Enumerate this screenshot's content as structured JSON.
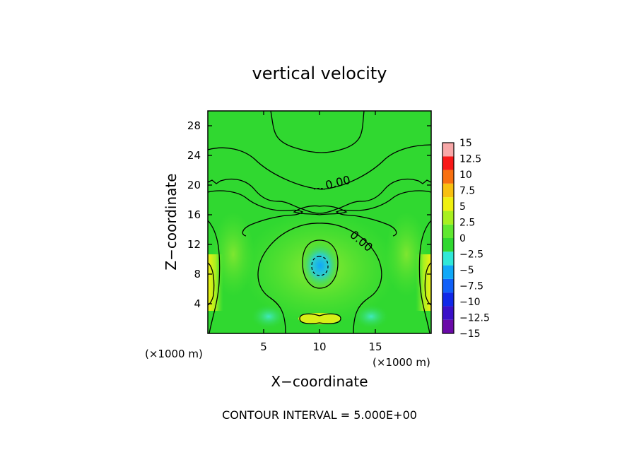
{
  "chart_data": {
    "type": "heatmap",
    "title": "vertical velocity",
    "xlabel": "X−coordinate",
    "ylabel": "Z−coordinate",
    "x_unit_left": "(×1000 m)",
    "x_unit_right": "(×1000 m)",
    "xlim": [
      0,
      20
    ],
    "ylim": [
      0,
      30
    ],
    "x_ticks": [
      5,
      10,
      15
    ],
    "x_tick_labels": [
      "5",
      "10",
      "15"
    ],
    "y_ticks": [
      4,
      8,
      12,
      16,
      20,
      24,
      28
    ],
    "y_tick_labels": [
      "4",
      "8",
      "12",
      "16",
      "20",
      "24",
      "28"
    ],
    "contour_labels": [
      "0.00",
      "0.00"
    ],
    "footer": "CONTOUR INTERVAL = 5.000E+00",
    "colorbar": {
      "levels": [
        -15,
        -12.5,
        -10,
        -7.5,
        -5,
        -2.5,
        0,
        2.5,
        5,
        7.5,
        10,
        12.5,
        15
      ],
      "labels": [
        "−15",
        "−12.5",
        "−10",
        "−7.5",
        "−5",
        "−2.5",
        "0",
        "2.5",
        "5",
        "7.5",
        "10",
        "12.5",
        "15"
      ],
      "colors": [
        "#6a0aa8",
        "#3a10c8",
        "#1028e8",
        "#1060f8",
        "#10a8f8",
        "#30e8d8",
        "#30d830",
        "#60e830",
        "#a8f020",
        "#f0f010",
        "#f8c010",
        "#f87010",
        "#f81818",
        "#f8a8a8"
      ]
    },
    "field_features": {
      "background_level": 0,
      "downdraft_center": {
        "x": 10,
        "z": 9,
        "w_min": -7.5
      },
      "updraft_near_surface": {
        "x": 10,
        "z": 1.5,
        "w_max": 5
      },
      "updraft_left_edge": {
        "x": 0.3,
        "z": 8,
        "w_max": 5
      },
      "updraft_right_edge": {
        "x": 19.7,
        "z": 8,
        "w_max": 5
      },
      "weak_downdrafts": [
        {
          "x": 5,
          "z": 2
        },
        {
          "x": 15,
          "z": 2
        }
      ]
    }
  }
}
